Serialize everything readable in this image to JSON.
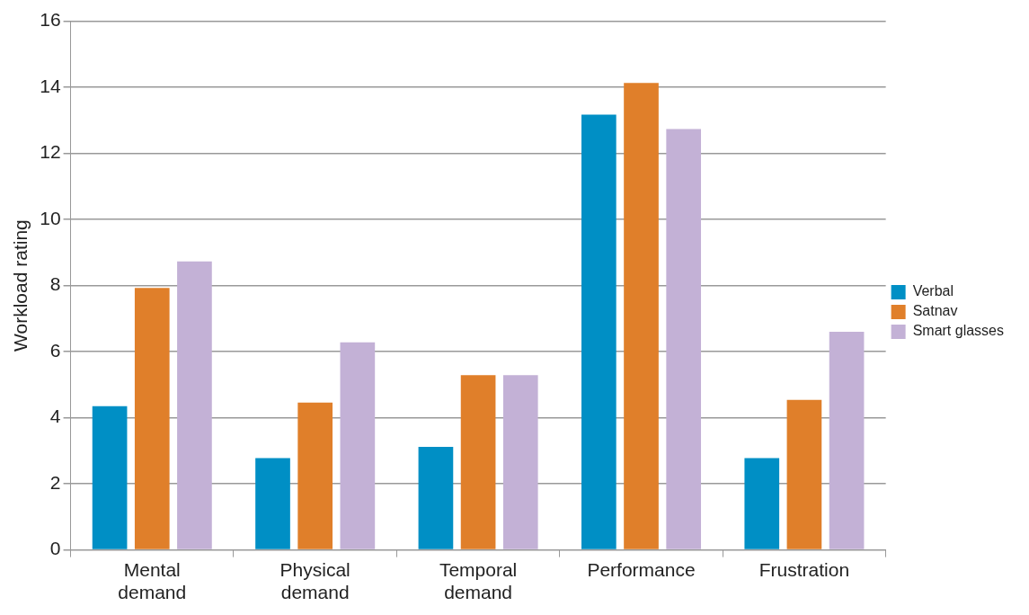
{
  "chart_data": {
    "type": "bar",
    "ylabel": "Workload rating",
    "categories": [
      "Mental demand",
      "Physical demand",
      "Temporal demand",
      "Performance",
      "Frustration"
    ],
    "series": [
      {
        "name": "Verbal",
        "color": "#008fc5",
        "values": [
          4.35,
          2.78,
          3.12,
          13.17,
          2.78
        ]
      },
      {
        "name": "Satnav",
        "color": "#e07f2a",
        "values": [
          7.93,
          4.46,
          5.29,
          14.13,
          4.54
        ]
      },
      {
        "name": "Smart glasses",
        "color": "#c3b1d6",
        "values": [
          8.73,
          6.28,
          5.29,
          12.74,
          6.6
        ]
      }
    ],
    "ylim": [
      0,
      16
    ],
    "yticks": [
      0,
      2,
      4,
      6,
      8,
      10,
      12,
      14,
      16
    ],
    "grid": "y",
    "legend": "right"
  }
}
